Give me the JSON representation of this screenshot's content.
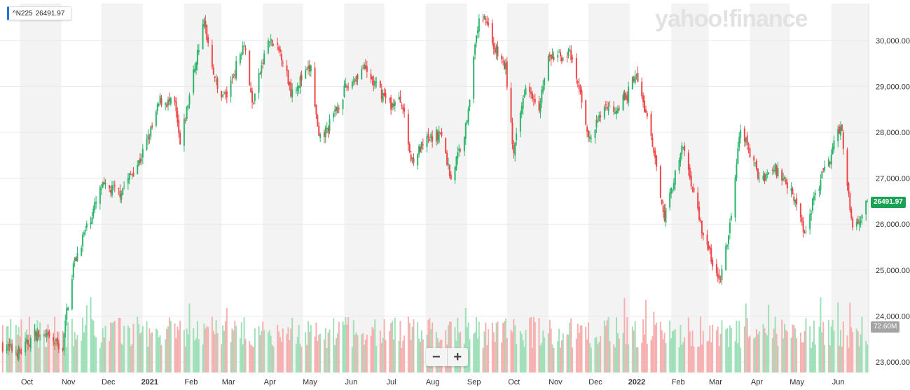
{
  "legend": {
    "symbol": "^N225",
    "value": "26491.97"
  },
  "watermark": "yahoo!finance",
  "last_price_label": "26491.97",
  "volume_label": "72.60M",
  "zoom": {
    "minus": "−",
    "plus": "+"
  },
  "colors": {
    "up": "#2ab56b",
    "down": "#ef4648",
    "volume_up": "#9fe0b8",
    "volume_down": "#f7b0b0",
    "band": "#f3f3f3",
    "grid": "#eaeaea",
    "axis_text": "#333333",
    "price_tag": "#1aa254",
    "volume_tag": "#a4a4a4"
  },
  "chart_data": {
    "type": "candlestick",
    "title": "",
    "xlabel": "",
    "ylabel": "",
    "ylim": [
      22900,
      30800
    ],
    "yticks": [
      "23,000.00",
      "24,000.00",
      "25,000.00",
      "26,000.00",
      "27,000.00",
      "28,000.00",
      "29,000.00",
      "30,000.00"
    ],
    "ytick_values": [
      23000,
      24000,
      25000,
      26000,
      27000,
      28000,
      29000,
      30000
    ],
    "xticks": [
      "Oct",
      "Nov",
      "Dec",
      "2021",
      "Feb",
      "Mar",
      "Apr",
      "May",
      "Jun",
      "Jul",
      "Aug",
      "Sep",
      "Oct",
      "Nov",
      "Dec",
      "2022",
      "Feb",
      "Mar",
      "Apr",
      "May",
      "Jun"
    ],
    "grid": true,
    "last_value": 26491.97,
    "series": [
      {
        "path_points": [
          [
            "2020-09-18",
            23360
          ],
          [
            "2020-10-01",
            23200
          ],
          [
            "2020-10-12",
            23600
          ],
          [
            "2020-10-23",
            23500
          ],
          [
            "2020-11-02",
            23300
          ],
          [
            "2020-11-05",
            24100
          ],
          [
            "2020-11-10",
            25100
          ],
          [
            "2020-11-17",
            25700
          ],
          [
            "2020-11-25",
            26300
          ],
          [
            "2020-12-01",
            26800
          ],
          [
            "2020-12-15",
            26700
          ],
          [
            "2020-12-30",
            27400
          ],
          [
            "2021-01-08",
            28100
          ],
          [
            "2021-01-14",
            28700
          ],
          [
            "2021-01-25",
            28600
          ],
          [
            "2021-01-29",
            27700
          ],
          [
            "2021-02-05",
            28800
          ],
          [
            "2021-02-10",
            29600
          ],
          [
            "2021-02-16",
            30400
          ],
          [
            "2021-02-26",
            28900
          ],
          [
            "2021-03-05",
            28800
          ],
          [
            "2021-03-18",
            30000
          ],
          [
            "2021-03-24",
            28600
          ],
          [
            "2021-04-05",
            30000
          ],
          [
            "2021-04-15",
            29700
          ],
          [
            "2021-04-22",
            28900
          ],
          [
            "2021-05-07",
            29400
          ],
          [
            "2021-05-13",
            27800
          ],
          [
            "2021-05-20",
            28100
          ],
          [
            "2021-06-01",
            28900
          ],
          [
            "2021-06-15",
            29400
          ],
          [
            "2021-06-25",
            29000
          ],
          [
            "2021-07-06",
            28600
          ],
          [
            "2021-07-14",
            28700
          ],
          [
            "2021-07-21",
            27400
          ],
          [
            "2021-08-02",
            27800
          ],
          [
            "2021-08-12",
            28000
          ],
          [
            "2021-08-20",
            27000
          ],
          [
            "2021-08-31",
            28100
          ],
          [
            "2021-09-09",
            30300
          ],
          [
            "2021-09-14",
            30600
          ],
          [
            "2021-09-22",
            29800
          ],
          [
            "2021-09-30",
            29400
          ],
          [
            "2021-10-06",
            27500
          ],
          [
            "2021-10-15",
            29100
          ],
          [
            "2021-10-25",
            28600
          ],
          [
            "2021-11-01",
            29600
          ],
          [
            "2021-11-17",
            29700
          ],
          [
            "2021-11-26",
            28700
          ],
          [
            "2021-12-02",
            27800
          ],
          [
            "2021-12-13",
            28600
          ],
          [
            "2021-12-20",
            28500
          ],
          [
            "2021-12-30",
            28800
          ],
          [
            "2022-01-05",
            29300
          ],
          [
            "2022-01-14",
            28300
          ],
          [
            "2022-01-27",
            26200
          ],
          [
            "2022-02-10",
            27700
          ],
          [
            "2022-02-24",
            25900
          ],
          [
            "2022-03-09",
            24700
          ],
          [
            "2022-03-16",
            25700
          ],
          [
            "2022-03-25",
            28100
          ],
          [
            "2022-04-08",
            27000
          ],
          [
            "2022-04-20",
            27200
          ],
          [
            "2022-05-02",
            26800
          ],
          [
            "2022-05-12",
            25800
          ],
          [
            "2022-05-20",
            26700
          ],
          [
            "2022-06-01",
            27500
          ],
          [
            "2022-06-08",
            28200
          ],
          [
            "2022-06-17",
            25900
          ],
          [
            "2022-06-22",
            26150
          ],
          [
            "2022-06-28",
            26491.97
          ]
        ]
      }
    ]
  }
}
